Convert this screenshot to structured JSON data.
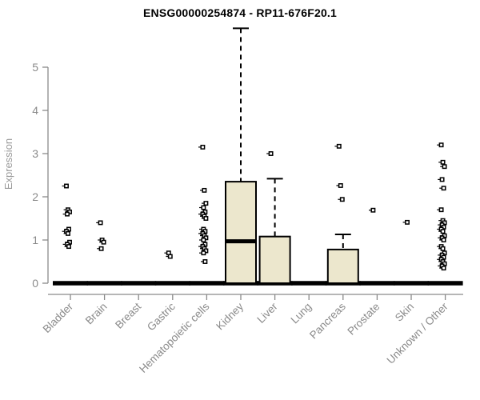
{
  "chart_data": {
    "type": "boxplot",
    "title": "ENSG00000254874 - RP11-676F20.1",
    "ylabel": "Expression",
    "xlabel": "",
    "ylim": [
      0,
      5
    ],
    "yticks": [
      0,
      1,
      2,
      3,
      4,
      5
    ],
    "grid": false,
    "legend": "none",
    "colors": {
      "box_fill": "#ece7cd",
      "box_stroke": "#000000",
      "zero_bar": "#000000",
      "axis": "#8a8a8a",
      "tick_label": "#8a8a8a",
      "ylabel_color": "#9a9a9a",
      "title_color": "#000000",
      "point_stroke": "#000000",
      "background": "#ffffff"
    },
    "categories": [
      "Bladder",
      "Brain",
      "Breast",
      "Gastric",
      "Hematopoietic cells",
      "Kidney",
      "Liver",
      "Lung",
      "Pancreas",
      "Prostate",
      "Skin",
      "Unknown / Other"
    ],
    "series": [
      {
        "category": "Bladder",
        "q1": 0,
        "median": 0,
        "q3": 0,
        "whisker_low": 0,
        "whisker_high": 0,
        "points": [
          2.25,
          1.7,
          1.65,
          1.6,
          1.25,
          1.2,
          1.15,
          0.95,
          0.9,
          0.85
        ]
      },
      {
        "category": "Brain",
        "q1": 0,
        "median": 0,
        "q3": 0,
        "whisker_low": 0,
        "whisker_high": 0,
        "points": [
          1.4,
          1.0,
          0.95,
          0.8
        ]
      },
      {
        "category": "Breast",
        "q1": 0,
        "median": 0,
        "q3": 0,
        "whisker_low": 0,
        "whisker_high": 0,
        "points": []
      },
      {
        "category": "Gastric",
        "q1": 0,
        "median": 0,
        "q3": 0,
        "whisker_low": 0,
        "whisker_high": 0,
        "points": [
          0.7,
          0.62
        ]
      },
      {
        "category": "Hematopoietic cells",
        "q1": 0,
        "median": 0,
        "q3": 0,
        "whisker_low": 0,
        "whisker_high": 0,
        "points": [
          3.15,
          2.15,
          1.85,
          1.75,
          1.65,
          1.6,
          1.55,
          1.5,
          1.25,
          1.2,
          1.15,
          1.1,
          1.05,
          1.0,
          0.9,
          0.85,
          0.8,
          0.75,
          0.7,
          0.5
        ]
      },
      {
        "category": "Kidney",
        "q1": 0,
        "median": 0.97,
        "q3": 2.35,
        "whisker_low": 0,
        "whisker_high": 5.9,
        "points": []
      },
      {
        "category": "Liver",
        "q1": 0,
        "median": 0,
        "q3": 1.08,
        "whisker_low": 0,
        "whisker_high": 2.42,
        "points": [
          3.0
        ]
      },
      {
        "category": "Lung",
        "q1": 0,
        "median": 0,
        "q3": 0,
        "whisker_low": 0,
        "whisker_high": 0,
        "points": []
      },
      {
        "category": "Pancreas",
        "q1": 0,
        "median": 0,
        "q3": 0.78,
        "whisker_low": 0,
        "whisker_high": 1.13,
        "points": [
          3.17,
          2.26,
          1.94
        ]
      },
      {
        "category": "Prostate",
        "q1": 0,
        "median": 0,
        "q3": 0,
        "whisker_low": 0,
        "whisker_high": 0,
        "points": [
          1.69
        ]
      },
      {
        "category": "Skin",
        "q1": 0,
        "median": 0,
        "q3": 0,
        "whisker_low": 0,
        "whisker_high": 0,
        "points": [
          1.41
        ]
      },
      {
        "category": "Unknown / Other",
        "q1": 0,
        "median": 0,
        "q3": 0,
        "whisker_low": 0,
        "whisker_high": 0,
        "points": [
          3.2,
          2.8,
          2.7,
          2.4,
          2.2,
          1.7,
          1.45,
          1.4,
          1.35,
          1.3,
          1.25,
          1.2,
          1.1,
          1.05,
          1.0,
          0.85,
          0.8,
          0.7,
          0.65,
          0.6,
          0.55,
          0.5,
          0.45,
          0.4,
          0.35
        ]
      }
    ]
  }
}
